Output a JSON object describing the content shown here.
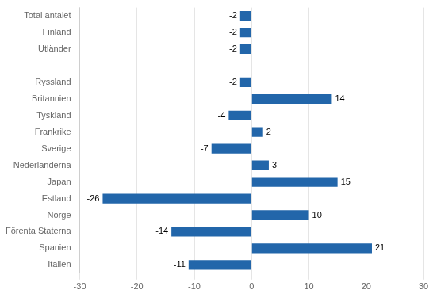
{
  "chart_data": {
    "type": "bar",
    "orientation": "horizontal",
    "categories": [
      "Total antalet",
      "Finland",
      "Utländer",
      null,
      "Ryssland",
      "Britannien",
      "Tyskland",
      "Frankrike",
      "Sverige",
      "Nederländerna",
      "Japan",
      "Estland",
      "Norge",
      "Förenta Staterna",
      "Spanien",
      "Italien"
    ],
    "values": [
      -2,
      -2,
      -2,
      null,
      -2,
      14,
      -4,
      2,
      -7,
      3,
      15,
      -26,
      10,
      -14,
      21,
      -11
    ],
    "color": "#2266AA",
    "xlim": [
      -30,
      30
    ],
    "xticks": [
      -30,
      -20,
      -10,
      0,
      10,
      20,
      30
    ],
    "grid": true,
    "data_labels": true
  }
}
